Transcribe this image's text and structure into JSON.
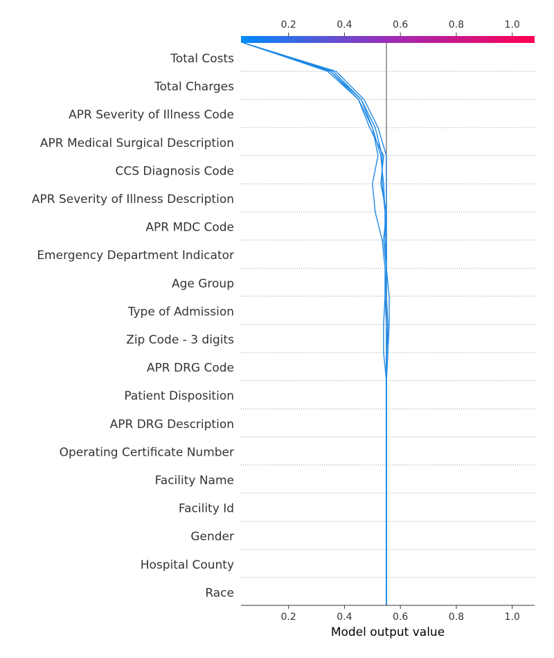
{
  "chart_data": {
    "type": "decision",
    "title": "",
    "xlabel": "Model output value",
    "xlim": [
      0.03,
      1.08
    ],
    "base_value": 0.55,
    "ticks": [
      "0.2",
      "0.4",
      "0.6",
      "0.8",
      "1.0"
    ],
    "tick_values": [
      0.2,
      0.4,
      0.6,
      0.8,
      1.0
    ],
    "colorbar": {
      "from": "#008bfb",
      "mid": "#9b2cb8",
      "to": "#ff0052"
    },
    "line_color": "#1e88e5",
    "grid": "dotted horizontal per feature",
    "features": [
      "Total Costs",
      "Total Charges",
      "APR Severity of Illness Code",
      "APR Medical Surgical Description",
      "CCS Diagnosis Code",
      "APR Severity of Illness Description",
      "APR MDC Code",
      "Emergency Department Indicator",
      "Age Group",
      "Type of Admission",
      "Zip Code - 3 digits",
      "APR DRG Code",
      "Patient Disposition",
      "APR DRG Description",
      "Operating Certificate Number",
      "Facility Name",
      "Facility Id",
      "Gender",
      "Hospital County",
      "Race"
    ],
    "series": [
      {
        "values": [
          0.04,
          0.37,
          0.47,
          0.52,
          0.55,
          0.55,
          0.55,
          0.55,
          0.55,
          0.55,
          0.555,
          0.555,
          0.55,
          0.55,
          0.55,
          0.55,
          0.55,
          0.55,
          0.55,
          0.55,
          0.55
        ]
      },
      {
        "values": [
          0.04,
          0.35,
          0.45,
          0.5,
          0.52,
          0.5,
          0.51,
          0.535,
          0.545,
          0.545,
          0.54,
          0.54,
          0.55,
          0.55,
          0.55,
          0.55,
          0.55,
          0.55,
          0.55,
          0.55,
          0.55
        ]
      },
      {
        "values": [
          0.04,
          0.34,
          0.45,
          0.49,
          0.54,
          0.53,
          0.55,
          0.54,
          0.55,
          0.55,
          0.555,
          0.55,
          0.55,
          0.55,
          0.55,
          0.55,
          0.55,
          0.55,
          0.55,
          0.55,
          0.55
        ]
      },
      {
        "values": [
          0.04,
          0.36,
          0.46,
          0.51,
          0.535,
          0.535,
          0.545,
          0.545,
          0.55,
          0.56,
          0.56,
          0.555,
          0.55,
          0.55,
          0.55,
          0.55,
          0.55,
          0.55,
          0.55,
          0.55,
          0.55
        ]
      },
      {
        "values": [
          0.04,
          0.35,
          0.46,
          0.5,
          0.53,
          0.54,
          0.545,
          0.55,
          0.55,
          0.545,
          0.55,
          0.55,
          0.55,
          0.55,
          0.55,
          0.55,
          0.55,
          0.55,
          0.55,
          0.55,
          0.55
        ]
      }
    ]
  }
}
